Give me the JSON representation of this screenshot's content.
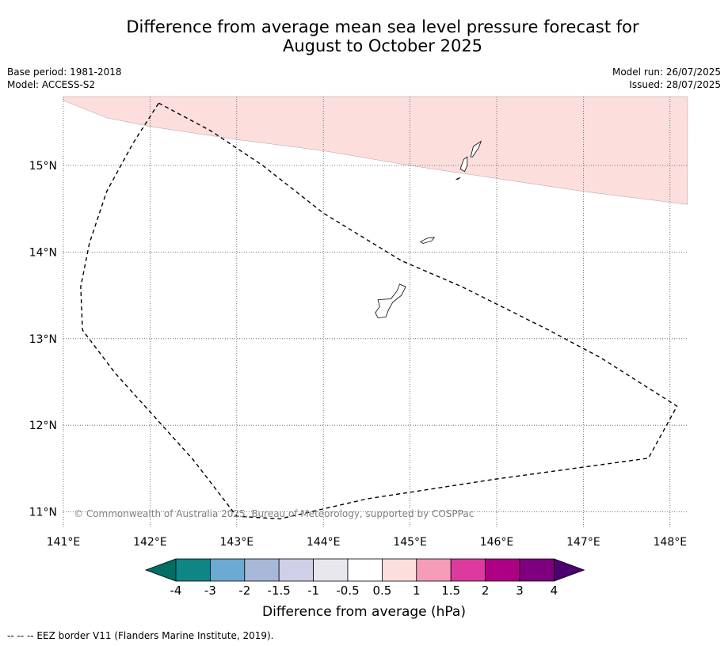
{
  "title_line1": "Difference from average mean sea level pressure forecast for",
  "title_line2": "August to October 2025",
  "base_period": "Base period: 1981-2018",
  "model": "Model: ACCESS-S2",
  "model_run": "Model run: 26/07/2025",
  "issued": "Issued: 28/07/2025",
  "map": {
    "lon_ticks": [
      {
        "value": 141,
        "label": "141°E"
      },
      {
        "value": 142,
        "label": "142°E"
      },
      {
        "value": 143,
        "label": "143°E"
      },
      {
        "value": 144,
        "label": "144°E"
      },
      {
        "value": 145,
        "label": "145°E"
      },
      {
        "value": 146,
        "label": "146°E"
      },
      {
        "value": 147,
        "label": "147°E"
      },
      {
        "value": 148,
        "label": "148°E"
      }
    ],
    "lat_ticks": [
      {
        "value": 15,
        "label": "15°N"
      },
      {
        "value": 14,
        "label": "14°N"
      },
      {
        "value": 13,
        "label": "13°N"
      },
      {
        "value": 12,
        "label": "12°N"
      },
      {
        "value": 11,
        "label": "11°N"
      }
    ],
    "extent": {
      "lon_min": 141,
      "lon_max": 148.2,
      "lat_min": 10.8,
      "lat_max": 15.8
    },
    "copyright": "© Commonwealth of Australia 2025, Bureau of Meteorology, supported by COSPPac",
    "anomaly_region": {
      "class": "0.5 to 1",
      "color": "#fcdedd",
      "lower_boundary": [
        [
          141.0,
          15.75
        ],
        [
          141.5,
          15.55
        ],
        [
          142.0,
          15.45
        ],
        [
          143.0,
          15.3
        ],
        [
          144.0,
          15.17
        ],
        [
          145.0,
          15.0
        ],
        [
          146.0,
          14.85
        ],
        [
          147.0,
          14.7
        ],
        [
          148.2,
          14.55
        ]
      ]
    },
    "eez_border": [
      [
        142.1,
        15.72
      ],
      [
        142.7,
        15.4
      ],
      [
        143.3,
        15.0
      ],
      [
        144.0,
        14.45
      ],
      [
        144.9,
        13.9
      ],
      [
        145.6,
        13.6
      ],
      [
        146.6,
        13.1
      ],
      [
        147.2,
        12.78
      ],
      [
        148.08,
        12.22
      ],
      [
        147.75,
        11.62
      ],
      [
        146.0,
        11.38
      ],
      [
        144.5,
        11.15
      ],
      [
        143.5,
        10.92
      ],
      [
        143.0,
        10.95
      ],
      [
        142.5,
        11.6
      ],
      [
        141.6,
        12.6
      ],
      [
        141.22,
        13.1
      ],
      [
        141.2,
        13.6
      ],
      [
        141.3,
        14.1
      ],
      [
        141.5,
        14.7
      ],
      [
        141.8,
        15.25
      ],
      [
        142.1,
        15.72
      ]
    ],
    "islands": [
      {
        "name": "Guam",
        "outline": [
          [
            144.63,
            13.45
          ],
          [
            144.78,
            13.46
          ],
          [
            144.85,
            13.55
          ],
          [
            144.88,
            13.63
          ],
          [
            144.95,
            13.6
          ],
          [
            144.9,
            13.5
          ],
          [
            144.8,
            13.42
          ],
          [
            144.75,
            13.33
          ],
          [
            144.72,
            13.25
          ],
          [
            144.63,
            13.24
          ],
          [
            144.6,
            13.3
          ],
          [
            144.65,
            13.37
          ]
        ]
      },
      {
        "name": "Rota",
        "outline": [
          [
            145.12,
            14.12
          ],
          [
            145.2,
            14.16
          ],
          [
            145.28,
            14.17
          ],
          [
            145.25,
            14.13
          ],
          [
            145.15,
            14.1
          ]
        ]
      },
      {
        "name": "Tinian",
        "outline": [
          [
            145.58,
            14.96
          ],
          [
            145.62,
            15.07
          ],
          [
            145.66,
            15.1
          ],
          [
            145.66,
            15.0
          ],
          [
            145.63,
            14.93
          ]
        ]
      },
      {
        "name": "Saipan",
        "outline": [
          [
            145.7,
            15.1
          ],
          [
            145.73,
            15.22
          ],
          [
            145.82,
            15.28
          ],
          [
            145.79,
            15.2
          ],
          [
            145.72,
            15.1
          ]
        ]
      },
      {
        "name": "Aguijan",
        "outline": [
          [
            145.53,
            14.84
          ],
          [
            145.58,
            14.86
          ],
          [
            145.55,
            14.84
          ]
        ]
      }
    ]
  },
  "colorbar": {
    "ticks": [
      "-4",
      "-3",
      "-2",
      "-1.5",
      "-1",
      "-0.5",
      "0.5",
      "1",
      "1.5",
      "2",
      "3",
      "4"
    ],
    "colors": [
      "#0f8585",
      "#6aaad3",
      "#a7b8d9",
      "#cfcfe7",
      "#e8e7ed",
      "#ffffff",
      "#fcdedd",
      "#f59cb8",
      "#dd3a9e",
      "#ae0085",
      "#7f007f"
    ],
    "under_color": "#006e64",
    "over_color": "#4d0070",
    "label": "Difference from average (hPa)"
  },
  "footnote": "--  --  -- EEZ border V11 (Flanders Marine Institute, 2019)."
}
